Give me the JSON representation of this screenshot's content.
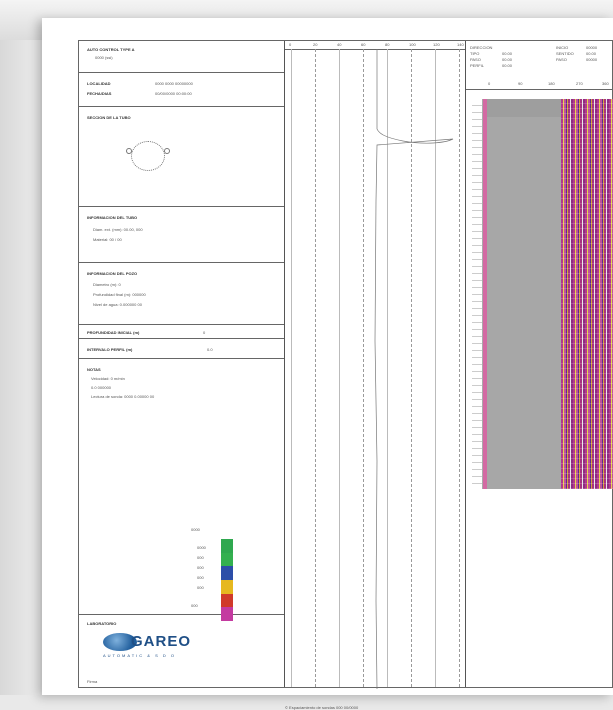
{
  "header": {
    "line1": "AUTO CONTROL TYPE A",
    "line2": "0000 (ssi)"
  },
  "info": {
    "localidad_label": "LOCALIDAD",
    "localidad_value": "0000 0000 00000000",
    "fecha_label": "FECHA/DIAS",
    "fecha_value": "00/00/0000 00:00:00"
  },
  "probe": {
    "title": "SECCION DE LA TUBO"
  },
  "well": {
    "title": "INFORMACION DEL TUBO",
    "line1": "Diam. ext. (mm): 00.00, 000",
    "line2": "Material: 00 / 00"
  },
  "pozo": {
    "title": "INFORMACION DEL POZO",
    "line1": "Diametro (m): 0",
    "line2": "Profundidad final (m): 000000",
    "line3": "Nivel de agua: 0.000000 00"
  },
  "depth": {
    "label": "PROFUNDIDAD INICIAL (m)",
    "value": "0"
  },
  "interval": {
    "label": "INTERVALO PERFIL (m)",
    "value": "0.0"
  },
  "notes": {
    "title": "NOTAS",
    "line1": "Velocidad: 0 m/min",
    "line2": "0.0 000000",
    "line3": "Lectura de sonda: 0000 0.00000 00"
  },
  "colorscale": {
    "colors": [
      "#2fa84f",
      "#33b04f",
      "#2c4ea8",
      "#e6b81f",
      "#d03a2a",
      "#c43aa0"
    ],
    "labels": [
      "0000",
      "0000",
      "000",
      "000",
      "000",
      "000",
      "000"
    ]
  },
  "company": {
    "label": "LABORATORIO",
    "logo_text": "GAREO",
    "logo_sub": "AUTOMATIC  &  S D O",
    "footer_label": "Firma"
  },
  "track": {
    "ticks": [
      "0",
      "20",
      "40",
      "60",
      "80",
      "100",
      "120",
      "140"
    ]
  },
  "image_header": {
    "l1": "DIRECCION",
    "l2": "TIPO",
    "l3": "PASO",
    "l4": "PERFIL",
    "r1": "INICIO",
    "r2": "SENTIDO",
    "r3": "PASO",
    "v1": "00.00",
    "v2": "00.00",
    "v3": "00.00",
    "v4": "00000",
    "v5": "00.00",
    "v6": "00000",
    "scale": [
      "0",
      "90",
      "180",
      "270",
      "360"
    ]
  },
  "footer": {
    "text": "© Espaciamiento de sondas 000  00/0000"
  }
}
